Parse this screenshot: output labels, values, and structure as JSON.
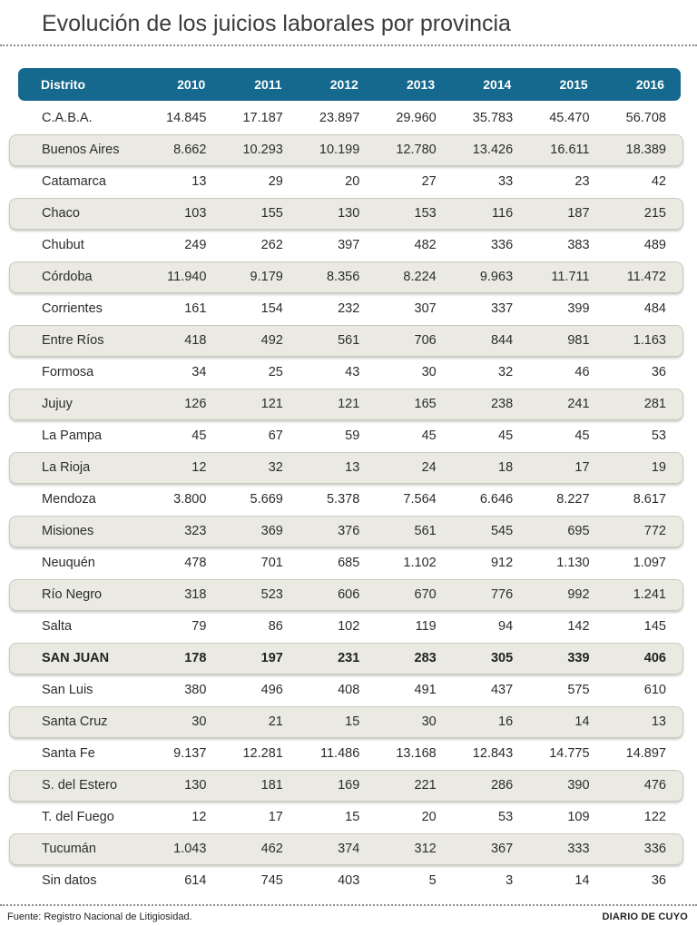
{
  "title": "Evolución de los juicios laborales por provincia",
  "colors": {
    "header_bg": "#15698e",
    "header_text": "#ffffff",
    "band_bg": "#eaeae3",
    "band_border": "#c9c9bd",
    "title_text": "#3c3c3c",
    "body_text": "#2c2c2c"
  },
  "footer": {
    "source": "Fuente: Registro Nacional de Litigiosidad.",
    "credit": "DIARIO DE CUYO"
  },
  "chart_data": {
    "type": "table",
    "title": "Evolución de los juicios laborales por provincia",
    "district_header": "Distrito",
    "years": [
      "2010",
      "2011",
      "2012",
      "2013",
      "2014",
      "2015",
      "2016"
    ],
    "rows": [
      {
        "district": "C.A.B.A.",
        "values": [
          "14.845",
          "17.187",
          "23.897",
          "29.960",
          "35.783",
          "45.470",
          "56.708"
        ],
        "highlight": false
      },
      {
        "district": "Buenos Aires",
        "values": [
          "8.662",
          "10.293",
          "10.199",
          "12.780",
          "13.426",
          "16.611",
          "18.389"
        ],
        "highlight": false
      },
      {
        "district": "Catamarca",
        "values": [
          "13",
          "29",
          "20",
          "27",
          "33",
          "23",
          "42"
        ],
        "highlight": false
      },
      {
        "district": "Chaco",
        "values": [
          "103",
          "155",
          "130",
          "153",
          "116",
          "187",
          "215"
        ],
        "highlight": false
      },
      {
        "district": "Chubut",
        "values": [
          "249",
          "262",
          "397",
          "482",
          "336",
          "383",
          "489"
        ],
        "highlight": false
      },
      {
        "district": "Córdoba",
        "values": [
          "11.940",
          "9.179",
          "8.356",
          "8.224",
          "9.963",
          "11.711",
          "11.472"
        ],
        "highlight": false
      },
      {
        "district": "Corrientes",
        "values": [
          "161",
          "154",
          "232",
          "307",
          "337",
          "399",
          "484"
        ],
        "highlight": false
      },
      {
        "district": "Entre Ríos",
        "values": [
          "418",
          "492",
          "561",
          "706",
          "844",
          "981",
          "1.163"
        ],
        "highlight": false
      },
      {
        "district": "Formosa",
        "values": [
          "34",
          "25",
          "43",
          "30",
          "32",
          "46",
          "36"
        ],
        "highlight": false
      },
      {
        "district": "Jujuy",
        "values": [
          "126",
          "121",
          "121",
          "165",
          "238",
          "241",
          "281"
        ],
        "highlight": false
      },
      {
        "district": "La Pampa",
        "values": [
          "45",
          "67",
          "59",
          "45",
          "45",
          "45",
          "53"
        ],
        "highlight": false
      },
      {
        "district": "La Rioja",
        "values": [
          "12",
          "32",
          "13",
          "24",
          "18",
          "17",
          "19"
        ],
        "highlight": false
      },
      {
        "district": "Mendoza",
        "values": [
          "3.800",
          "5.669",
          "5.378",
          "7.564",
          "6.646",
          "8.227",
          "8.617"
        ],
        "highlight": false
      },
      {
        "district": "Misiones",
        "values": [
          "323",
          "369",
          "376",
          "561",
          "545",
          "695",
          "772"
        ],
        "highlight": false
      },
      {
        "district": "Neuquén",
        "values": [
          "478",
          "701",
          "685",
          "1.102",
          "912",
          "1.130",
          "1.097"
        ],
        "highlight": false
      },
      {
        "district": "Río Negro",
        "values": [
          "318",
          "523",
          "606",
          "670",
          "776",
          "992",
          "1.241"
        ],
        "highlight": false
      },
      {
        "district": "Salta",
        "values": [
          "79",
          "86",
          "102",
          "119",
          "94",
          "142",
          "145"
        ],
        "highlight": false
      },
      {
        "district": "SAN JUAN",
        "values": [
          "178",
          "197",
          "231",
          "283",
          "305",
          "339",
          "406"
        ],
        "highlight": true
      },
      {
        "district": "San Luis",
        "values": [
          "380",
          "496",
          "408",
          "491",
          "437",
          "575",
          "610"
        ],
        "highlight": false
      },
      {
        "district": "Santa Cruz",
        "values": [
          "30",
          "21",
          "15",
          "30",
          "16",
          "14",
          "13"
        ],
        "highlight": false
      },
      {
        "district": "Santa Fe",
        "values": [
          "9.137",
          "12.281",
          "11.486",
          "13.168",
          "12.843",
          "14.775",
          "14.897"
        ],
        "highlight": false
      },
      {
        "district": "S. del Estero",
        "values": [
          "130",
          "181",
          "169",
          "221",
          "286",
          "390",
          "476"
        ],
        "highlight": false
      },
      {
        "district": "T. del Fuego",
        "values": [
          "12",
          "17",
          "15",
          "20",
          "53",
          "109",
          "122"
        ],
        "highlight": false
      },
      {
        "district": "Tucumán",
        "values": [
          "1.043",
          "462",
          "374",
          "312",
          "367",
          "333",
          "336"
        ],
        "highlight": false
      },
      {
        "district": "Sin datos",
        "values": [
          "614",
          "745",
          "403",
          "5",
          "3",
          "14",
          "36"
        ],
        "highlight": false
      }
    ]
  }
}
